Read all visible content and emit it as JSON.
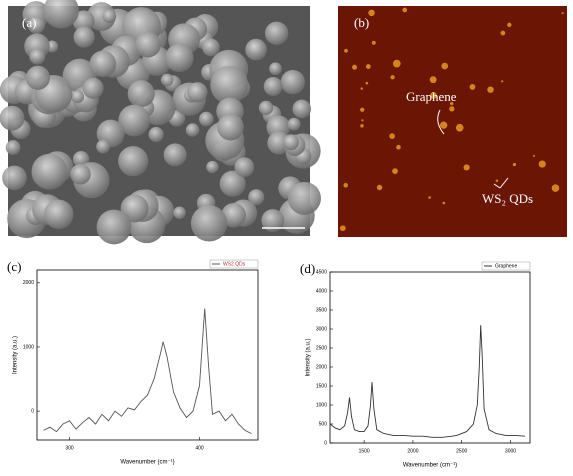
{
  "figure": {
    "panels": [
      {
        "label": "(a)"
      },
      {
        "label": "(b)",
        "annotations": [
          "Graphene",
          "WS₂ QDs"
        ]
      }
    ]
  },
  "chart_data": [
    {
      "type": "line",
      "label": "(c)",
      "x_label": "Wavenumber (cm⁻¹)",
      "y_label": "Intensity (a.u.)",
      "xlim": [
        275,
        445
      ],
      "xticks": [
        300,
        400
      ],
      "ylim": [
        -450,
        2200
      ],
      "yticks": [
        0,
        1000,
        2000
      ],
      "legend": "top-right",
      "x": [
        280,
        285,
        290,
        295,
        300,
        305,
        310,
        315,
        320,
        325,
        330,
        335,
        340,
        345,
        350,
        355,
        360,
        365,
        370,
        372,
        375,
        380,
        385,
        390,
        395,
        400,
        404,
        407,
        410,
        415,
        420,
        425,
        430,
        435,
        440
      ],
      "series": [
        {
          "name": "WS2 QDs",
          "color": "#555555",
          "values": [
            -300,
            -250,
            -320,
            -200,
            -150,
            -280,
            -180,
            -100,
            -200,
            -50,
            -150,
            0,
            -80,
            50,
            20,
            150,
            250,
            500,
            900,
            1080,
            850,
            300,
            50,
            -100,
            0,
            400,
            1600,
            700,
            -50,
            0,
            -150,
            -50,
            -200,
            -300,
            -350
          ]
        }
      ]
    },
    {
      "type": "line",
      "label": "(d)",
      "x_label": "Wavenumber (cm⁻¹)",
      "y_label": "Intensity (a.u.)",
      "xlim": [
        1150,
        3200
      ],
      "xticks": [
        1500,
        2000,
        2500,
        3000
      ],
      "ylim": [
        0,
        4500
      ],
      "yticks": [
        0,
        500,
        1000,
        1500,
        2000,
        2500,
        3000,
        3500,
        4000,
        4500
      ],
      "legend": "top-right",
      "x": [
        1150,
        1200,
        1250,
        1300,
        1330,
        1350,
        1370,
        1400,
        1450,
        1500,
        1540,
        1565,
        1580,
        1600,
        1630,
        1700,
        1800,
        1900,
        2000,
        2100,
        2200,
        2300,
        2400,
        2450,
        2550,
        2620,
        2660,
        2680,
        2695,
        2710,
        2730,
        2780,
        2850,
        2950,
        3050,
        3150
      ],
      "series": [
        {
          "name": "Graphene",
          "color": "#333333",
          "values": [
            500,
            400,
            350,
            450,
            800,
            1200,
            700,
            350,
            300,
            300,
            450,
            1000,
            1600,
            900,
            350,
            250,
            200,
            200,
            180,
            180,
            150,
            150,
            180,
            200,
            300,
            500,
            1000,
            2000,
            3100,
            2300,
            900,
            350,
            250,
            200,
            200,
            180
          ]
        }
      ]
    }
  ]
}
